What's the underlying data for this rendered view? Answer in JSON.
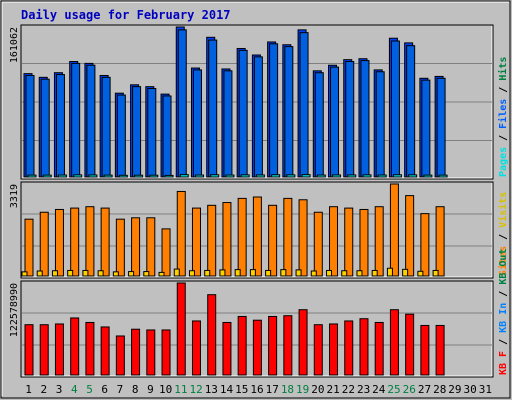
{
  "title": "Daily usage for February 2017",
  "x_labels": [
    "1",
    "2",
    "3",
    "4",
    "5",
    "6",
    "7",
    "8",
    "9",
    "10",
    "11",
    "12",
    "13",
    "14",
    "15",
    "16",
    "17",
    "18",
    "19",
    "20",
    "21",
    "22",
    "23",
    "24",
    "25",
    "26",
    "27",
    "28",
    "29",
    "30",
    "31"
  ],
  "weekend_days": [
    4,
    5,
    11,
    12,
    18,
    19,
    25,
    26
  ],
  "colors": {
    "background": "#c0c0c0",
    "plot_bg": "#c0c0c0",
    "title": "#0000c0",
    "day_text": "#000000",
    "weekend_text": "#008040",
    "hits": "#0040ff",
    "files": "#00c0ff",
    "pages": "#00e0e0",
    "visits": "#ff8000",
    "sites": "#ffd000",
    "kbin": "#ff0000",
    "kbout": "#0080ff",
    "kbf": "#ff0000",
    "grid": "#808080"
  },
  "chart_data": [
    {
      "type": "bar",
      "name": "hits-files-pages",
      "ymax_label": "161062",
      "ylim": [
        0,
        161062
      ],
      "legend": [
        {
          "text": "Pages",
          "color": "#00e0e0"
        },
        {
          "text": "Files",
          "color": "#0060ff"
        },
        {
          "text": "Hits",
          "color": "#008040"
        }
      ],
      "series": [
        {
          "name": "Hits",
          "values": [
            111000,
            107000,
            112000,
            124000,
            122000,
            109000,
            90000,
            99000,
            97000,
            89000,
            161062,
            117000,
            150000,
            116000,
            138000,
            131000,
            145000,
            142000,
            158000,
            114000,
            120000,
            126000,
            127000,
            115000,
            149000,
            144000,
            106000,
            108000
          ]
        },
        {
          "name": "Files",
          "values": [
            109000,
            105000,
            110000,
            122000,
            120000,
            107000,
            88000,
            97000,
            95000,
            87000,
            158000,
            115000,
            147000,
            114000,
            136000,
            129000,
            143000,
            140000,
            155000,
            112000,
            118000,
            124000,
            125000,
            113000,
            146000,
            141000,
            104000,
            106000
          ]
        },
        {
          "name": "Pages",
          "values": [
            2000,
            2000,
            2100,
            2300,
            2200,
            2000,
            1800,
            1900,
            1900,
            1700,
            2500,
            2100,
            2400,
            2100,
            2300,
            2200,
            2400,
            2300,
            2500,
            2100,
            2200,
            2200,
            2300,
            2100,
            2400,
            2300,
            2000,
            2000
          ]
        }
      ]
    },
    {
      "type": "bar",
      "name": "visits-sites",
      "ymax_label": "3319",
      "ylim": [
        0,
        3319
      ],
      "legend": [
        {
          "text": "Sites",
          "color": "#ff8000"
        },
        {
          "text": "Visits",
          "color": "#d8c000"
        }
      ],
      "series": [
        {
          "name": "Visits",
          "values": [
            2050,
            2300,
            2400,
            2450,
            2500,
            2450,
            2050,
            2100,
            2100,
            1700,
            3050,
            2450,
            2550,
            2650,
            2800,
            2850,
            2550,
            2800,
            2750,
            2300,
            2500,
            2450,
            2400,
            2500,
            3319,
            2900,
            2250,
            2500
          ]
        },
        {
          "name": "Sites",
          "values": [
            150,
            180,
            190,
            200,
            200,
            190,
            150,
            160,
            160,
            130,
            250,
            190,
            200,
            220,
            230,
            230,
            200,
            230,
            220,
            180,
            200,
            190,
            190,
            200,
            280,
            240,
            170,
            200
          ]
        }
      ]
    },
    {
      "type": "bar",
      "name": "kbytes",
      "ymax_label": "122578990",
      "ylim": [
        0,
        122578990
      ],
      "legend": [
        {
          "text": "KB F",
          "color": "#ff0000"
        },
        {
          "text": "KB In",
          "color": "#0080ff"
        },
        {
          "text": "KB Out",
          "color": "#008040"
        }
      ],
      "series": [
        {
          "name": "KBytes",
          "values": [
            67000000,
            67000000,
            68000000,
            76000000,
            70000000,
            64000000,
            52000000,
            61000000,
            60000000,
            60000000,
            122578990,
            72000000,
            107000000,
            70000000,
            78000000,
            73000000,
            78000000,
            79000000,
            87000000,
            67000000,
            68000000,
            72000000,
            75000000,
            70000000,
            87000000,
            81000000,
            66000000,
            66000000
          ]
        }
      ]
    }
  ]
}
